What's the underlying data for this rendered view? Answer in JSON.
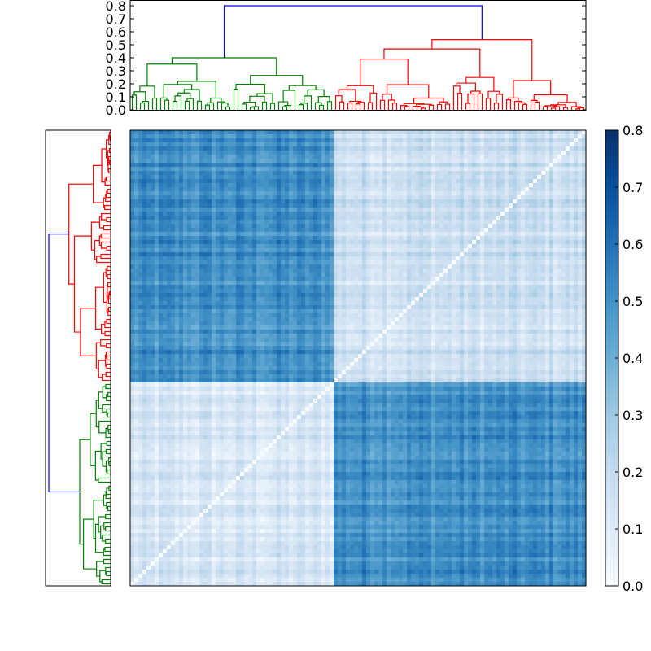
{
  "chart_data": {
    "type": "heatmap",
    "description_free": true,
    "n_leaves": 112,
    "clusters": [
      {
        "color": "#008000",
        "size": 50,
        "link_height": 0.4
      },
      {
        "color": "#ff0000",
        "size": 62,
        "link_height": 0.54
      }
    ],
    "root_link": {
      "color": "#0000ff",
      "height": 0.8
    },
    "mean_distance": {
      "within_first": 0.12,
      "within_second": 0.17,
      "between": 0.5
    },
    "top_dendrogram": {
      "ylim": [
        0,
        0.84
      ],
      "ticks": [
        "0.0",
        "0.1",
        "0.2",
        "0.3",
        "0.4",
        "0.5",
        "0.6",
        "0.7",
        "0.8"
      ]
    },
    "left_dendrogram": {
      "xlim": [
        0.84,
        0
      ],
      "orientation": "left"
    },
    "colorbar": {
      "colormap": "Blues",
      "range": [
        0,
        0.8
      ],
      "ticks": [
        "0.0",
        "0.1",
        "0.2",
        "0.3",
        "0.4",
        "0.5",
        "0.6",
        "0.7",
        "0.8"
      ]
    },
    "grid": false
  }
}
